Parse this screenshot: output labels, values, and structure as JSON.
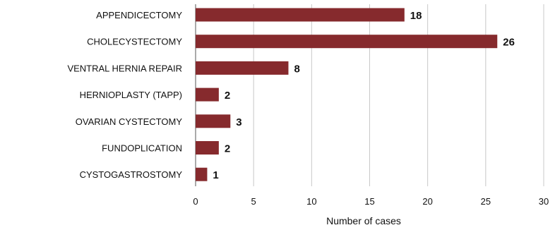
{
  "chart_data": {
    "type": "bar",
    "orientation": "horizontal",
    "categories": [
      "APPENDICECTOMY",
      "CHOLECYSTECTOMY",
      "VENTRAL HERNIA REPAIR",
      "HERNIOPLASTY (TAPP)",
      "OVARIAN CYSTECTOMY",
      "FUNDOPLICATION",
      "CYSTOGASTROSTOMY"
    ],
    "values": [
      18,
      26,
      8,
      2,
      3,
      2,
      1
    ],
    "xlabel": "Number of cases",
    "ylabel": "",
    "xlim": [
      0,
      30
    ],
    "xticks": [
      0,
      5,
      10,
      15,
      20,
      25,
      30
    ],
    "grid": "vertical",
    "bar_color": "#862a2d"
  }
}
